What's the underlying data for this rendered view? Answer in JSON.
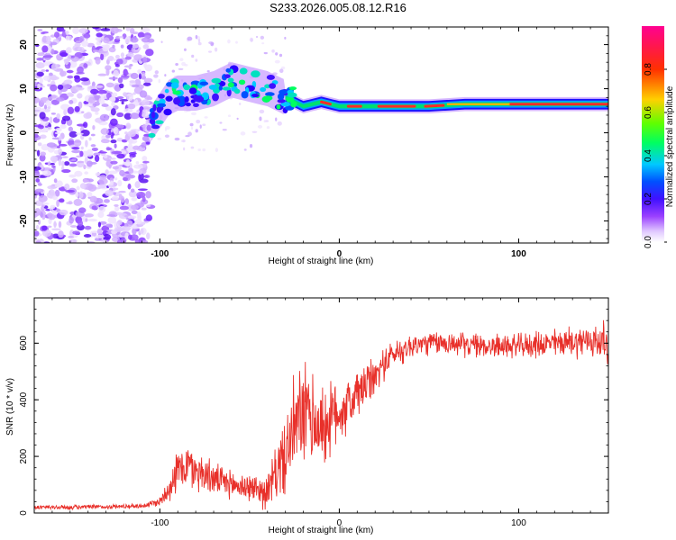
{
  "figure_title": "S233.2026.005.08.12.R16",
  "chart_data": [
    {
      "type": "heatmap",
      "xlabel": "Height of straight line (km)",
      "ylabel": "Frequency (Hz)",
      "xlim": [
        -170,
        150
      ],
      "ylim": [
        -25,
        24
      ],
      "xticks": [
        -100,
        0,
        100
      ],
      "yticks": [
        -20,
        -10,
        0,
        10,
        20
      ],
      "xtick_labels": [
        "-100",
        "0",
        "100"
      ],
      "ytick_labels": [
        "-20",
        "-10",
        "0",
        "10",
        "20"
      ],
      "colorbar": {
        "label": "Normalized spectral amplitude",
        "range": [
          0.0,
          1.0
        ],
        "ticks": [
          0.0,
          0.2,
          0.4,
          0.6,
          0.8
        ],
        "tick_labels": [
          "0.0",
          "0.2",
          "0.4",
          "0.6",
          "0.8"
        ],
        "colormap": [
          "#ffffff",
          "#d8b8ff",
          "#7a1aff",
          "#2a00ff",
          "#0050ff",
          "#00d0ff",
          "#00ff40",
          "#c0ff00",
          "#ffb000",
          "#ff2000",
          "#ff00a0"
        ]
      },
      "ridge": [
        {
          "x": -105,
          "f": 2
        },
        {
          "x": -100,
          "f": 5
        },
        {
          "x": -95,
          "f": 8
        },
        {
          "x": -90,
          "f": 9
        },
        {
          "x": -80,
          "f": 9
        },
        {
          "x": -70,
          "f": 10
        },
        {
          "x": -60,
          "f": 12
        },
        {
          "x": -50,
          "f": 11
        },
        {
          "x": -40,
          "f": 10
        },
        {
          "x": -30,
          "f": 8
        },
        {
          "x": -20,
          "f": 6
        },
        {
          "x": -10,
          "f": 7
        },
        {
          "x": 0,
          "f": 6
        },
        {
          "x": 10,
          "f": 6
        },
        {
          "x": 30,
          "f": 6
        },
        {
          "x": 50,
          "f": 6
        },
        {
          "x": 70,
          "f": 6.5
        },
        {
          "x": 100,
          "f": 6.5
        },
        {
          "x": 150,
          "f": 6.5
        }
      ]
    },
    {
      "type": "line",
      "xlabel": "Height of straight line (km)",
      "ylabel": "SNR (10 * v/v)",
      "xlim": [
        -170,
        150
      ],
      "ylim": [
        0,
        760
      ],
      "xticks": [
        -100,
        0,
        100
      ],
      "yticks": [
        0,
        200,
        400,
        600
      ],
      "xtick_labels": [
        "-100",
        "0",
        "100"
      ],
      "ytick_labels": [
        "0",
        "200",
        "400",
        "600"
      ],
      "series": [
        {
          "name": "SNR",
          "color": "#e8302a",
          "x": [
            -170,
            -150,
            -130,
            -110,
            -100,
            -95,
            -90,
            -85,
            -80,
            -75,
            -70,
            -65,
            -60,
            -55,
            -50,
            -45,
            -40,
            -35,
            -30,
            -25,
            -20,
            -15,
            -10,
            -5,
            0,
            5,
            10,
            15,
            20,
            25,
            30,
            40,
            50,
            60,
            80,
            100,
            120,
            140,
            150
          ],
          "values": [
            20,
            20,
            22,
            25,
            40,
            90,
            150,
            170,
            150,
            140,
            120,
            110,
            100,
            95,
            90,
            85,
            70,
            150,
            200,
            300,
            350,
            330,
            300,
            330,
            360,
            380,
            420,
            450,
            480,
            530,
            560,
            590,
            600,
            600,
            590,
            590,
            600,
            610,
            600
          ],
          "spread": [
            10,
            10,
            10,
            10,
            20,
            60,
            90,
            100,
            90,
            80,
            70,
            60,
            60,
            60,
            60,
            60,
            80,
            120,
            160,
            220,
            220,
            200,
            180,
            160,
            140,
            120,
            110,
            100,
            80,
            70,
            60,
            55,
            50,
            50,
            50,
            50,
            60,
            70,
            90
          ]
        }
      ]
    }
  ]
}
